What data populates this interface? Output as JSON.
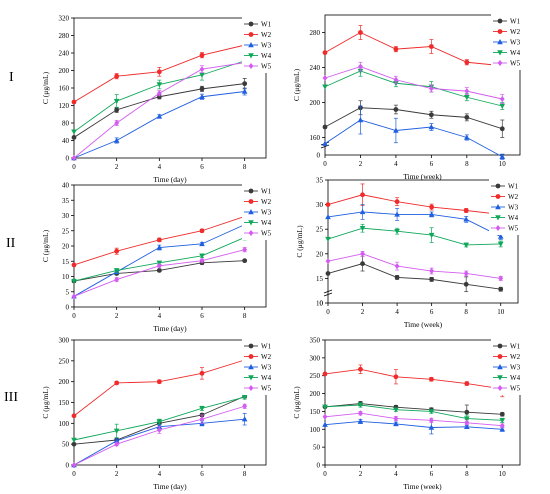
{
  "row_labels": [
    "I",
    "II",
    "III"
  ],
  "legend_labels": [
    "W1",
    "W2",
    "W3",
    "W4",
    "W5"
  ],
  "series_colors": [
    "#3a3a3a",
    "#ef2b2b",
    "#1f5fe0",
    "#0fa85a",
    "#d35cf0"
  ],
  "series_markers": [
    "circle",
    "circle",
    "triangle-up",
    "triangle-down",
    "diamond"
  ],
  "chart_data": [
    {
      "type": "line",
      "title": "",
      "row": "I",
      "xlabel": "Time (day)",
      "ylabel": "C (μg/mL)",
      "x": [
        0,
        2,
        4,
        6,
        8
      ],
      "xlim": [
        0,
        9
      ],
      "ylim": [
        0,
        320
      ],
      "xticks": [
        0,
        2,
        4,
        6,
        8
      ],
      "yticks": [
        0,
        40,
        80,
        120,
        160,
        200,
        240,
        280,
        320
      ],
      "legend": "top-right",
      "series": [
        {
          "name": "W1",
          "values": [
            47,
            110,
            140,
            158,
            170
          ],
          "err": [
            0,
            6,
            5,
            6,
            12
          ]
        },
        {
          "name": "W2",
          "values": [
            128,
            187,
            197,
            235,
            258
          ],
          "err": [
            0,
            6,
            10,
            6,
            10
          ]
        },
        {
          "name": "W3",
          "values": [
            0,
            40,
            95,
            140,
            152
          ],
          "err": [
            0,
            6,
            4,
            6,
            8
          ]
        },
        {
          "name": "W4",
          "values": [
            60,
            130,
            168,
            190,
            222
          ],
          "err": [
            0,
            15,
            10,
            12,
            14
          ]
        },
        {
          "name": "W5",
          "values": [
            0,
            80,
            148,
            203,
            218
          ],
          "err": [
            0,
            6,
            6,
            8,
            14
          ]
        }
      ]
    },
    {
      "type": "line",
      "title": "",
      "row": "I",
      "xlabel": "Time (week)",
      "ylabel": "C (μg/mL)",
      "x": [
        0,
        2,
        4,
        6,
        8,
        10
      ],
      "xlim": [
        0,
        11
      ],
      "ylim": [
        140,
        300
      ],
      "ybreak_label": "0",
      "xticks": [
        0,
        2,
        4,
        6,
        8,
        10
      ],
      "yticks": [
        160,
        200,
        240,
        280
      ],
      "legend": "top-right",
      "series": [
        {
          "name": "W1",
          "values": [
            172,
            194,
            192,
            186,
            183,
            170
          ],
          "err": [
            0,
            8,
            5,
            4,
            4,
            10
          ]
        },
        {
          "name": "W2",
          "values": [
            257,
            280,
            261,
            264,
            246,
            242
          ],
          "err": [
            0,
            8,
            3,
            8,
            3,
            3
          ]
        },
        {
          "name": "W3",
          "values": [
            153,
            180,
            168,
            172,
            160,
            138
          ],
          "err": [
            0,
            16,
            14,
            4,
            3,
            3
          ]
        },
        {
          "name": "W4",
          "values": [
            218,
            236,
            222,
            218,
            206,
            196
          ],
          "err": [
            0,
            6,
            4,
            6,
            4,
            4
          ]
        },
        {
          "name": "W5",
          "values": [
            228,
            241,
            226,
            216,
            213,
            204
          ],
          "err": [
            0,
            5,
            4,
            4,
            4,
            5
          ]
        }
      ]
    },
    {
      "type": "line",
      "title": "",
      "row": "II",
      "xlabel": "Time (day)",
      "ylabel": "C (μg/mL)",
      "x": [
        0,
        2,
        4,
        6,
        8
      ],
      "xlim": [
        0,
        9
      ],
      "ylim": [
        0,
        40
      ],
      "xticks": [
        0,
        2,
        4,
        6,
        8
      ],
      "yticks": [
        0,
        5,
        10,
        15,
        20,
        25,
        30,
        35,
        40
      ],
      "legend": "top-right",
      "series": [
        {
          "name": "W1",
          "values": [
            8.5,
            11,
            12,
            14.5,
            15.2
          ],
          "err": [
            0,
            0.5,
            0.4,
            0.5,
            0.4
          ]
        },
        {
          "name": "W2",
          "values": [
            13.8,
            18.3,
            22,
            25,
            29.7
          ],
          "err": [
            0,
            1,
            0.6,
            0.5,
            0.5
          ]
        },
        {
          "name": "W3",
          "values": [
            3.5,
            11.5,
            19.5,
            20.7,
            27
          ],
          "err": [
            0,
            0.5,
            0.8,
            0.5,
            1.5
          ]
        },
        {
          "name": "W4",
          "values": [
            8.5,
            12,
            14.5,
            16.8,
            22.8
          ],
          "err": [
            0,
            0.6,
            0.5,
            0.6,
            0.8
          ]
        },
        {
          "name": "W5",
          "values": [
            3.5,
            9,
            13.5,
            15.2,
            18.8
          ],
          "err": [
            0,
            0.6,
            0.4,
            0.5,
            0.7
          ]
        }
      ]
    },
    {
      "type": "line",
      "title": "",
      "row": "II",
      "xlabel": "Time (week)",
      "ylabel": "C (μg/mL)",
      "x": [
        0,
        2,
        4,
        6,
        8,
        10
      ],
      "xlim": [
        0,
        11
      ],
      "ylim": [
        10,
        35
      ],
      "ybreak_label": "0",
      "xticks": [
        0,
        2,
        4,
        6,
        8,
        10
      ],
      "yticks": [
        10,
        15,
        20,
        25,
        30,
        35
      ],
      "legend": "top-right",
      "series": [
        {
          "name": "W1",
          "values": [
            16,
            18,
            15.2,
            14.8,
            13.8,
            12.8
          ],
          "err": [
            0,
            1.5,
            0.4,
            0.4,
            1.5,
            0.4
          ]
        },
        {
          "name": "W2",
          "values": [
            30,
            32,
            30.6,
            29.5,
            28.8,
            28
          ],
          "err": [
            0,
            2.2,
            0.8,
            0.6,
            0.4,
            0.4
          ]
        },
        {
          "name": "W3",
          "values": [
            27.5,
            28.5,
            28,
            28,
            27,
            23.5
          ],
          "err": [
            0,
            1.5,
            1.2,
            0.5,
            0.6,
            0.6
          ]
        },
        {
          "name": "W4",
          "values": [
            23,
            25.2,
            24.6,
            23.8,
            21.8,
            22
          ],
          "err": [
            0,
            0.8,
            0.6,
            1.5,
            0.4,
            0.6
          ]
        },
        {
          "name": "W5",
          "values": [
            18.5,
            20,
            17.5,
            16.5,
            16,
            15
          ],
          "err": [
            0,
            0.5,
            0.8,
            0.6,
            0.5,
            0.4
          ]
        }
      ]
    },
    {
      "type": "line",
      "title": "",
      "row": "III",
      "xlabel": "Time (day)",
      "ylabel": "C (μg/mL)",
      "x": [
        0,
        2,
        4,
        6,
        8
      ],
      "xlim": [
        0,
        9
      ],
      "ylim": [
        0,
        300
      ],
      "xticks": [
        0,
        2,
        4,
        6,
        8
      ],
      "yticks": [
        0,
        50,
        100,
        150,
        200,
        250,
        300
      ],
      "legend": "top-right",
      "series": [
        {
          "name": "W1",
          "values": [
            50,
            60,
            100,
            120,
            165
          ],
          "err": [
            0,
            4,
            4,
            4,
            4
          ]
        },
        {
          "name": "W2",
          "values": [
            118,
            197,
            200,
            220,
            252
          ],
          "err": [
            0,
            3,
            4,
            14,
            4
          ]
        },
        {
          "name": "W3",
          "values": [
            0,
            58,
            92,
            100,
            110
          ],
          "err": [
            0,
            5,
            5,
            6,
            14
          ]
        },
        {
          "name": "W4",
          "values": [
            60,
            82,
            104,
            136,
            163
          ],
          "err": [
            0,
            16,
            6,
            5,
            5
          ]
        },
        {
          "name": "W5",
          "values": [
            0,
            50,
            84,
            110,
            141
          ],
          "err": [
            0,
            4,
            8,
            10,
            5
          ]
        }
      ]
    },
    {
      "type": "line",
      "title": "",
      "row": "III",
      "xlabel": "Time (week)",
      "ylabel": "C (μg/mL)",
      "x": [
        0,
        2,
        4,
        6,
        8,
        10
      ],
      "xlim": [
        0,
        11
      ],
      "ylim": [
        0,
        350
      ],
      "xticks": [
        0,
        2,
        4,
        6,
        8,
        10
      ],
      "yticks": [
        0,
        50,
        100,
        150,
        200,
        250,
        300,
        350
      ],
      "legend": "top-right",
      "series": [
        {
          "name": "W1",
          "values": [
            163,
            172,
            162,
            155,
            148,
            142
          ],
          "err": [
            0,
            6,
            5,
            5,
            20,
            5
          ]
        },
        {
          "name": "W2",
          "values": [
            255,
            268,
            247,
            240,
            228,
            213
          ],
          "err": [
            0,
            12,
            20,
            5,
            5,
            22
          ]
        },
        {
          "name": "W3",
          "values": [
            113,
            122,
            115,
            105,
            107,
            100
          ],
          "err": [
            0,
            6,
            5,
            18,
            4,
            6
          ]
        },
        {
          "name": "W4",
          "values": [
            163,
            168,
            155,
            150,
            130,
            125
          ],
          "err": [
            0,
            6,
            5,
            5,
            10,
            6
          ]
        },
        {
          "name": "W5",
          "values": [
            135,
            145,
            130,
            125,
            118,
            110
          ],
          "err": [
            0,
            5,
            6,
            6,
            5,
            5
          ]
        }
      ]
    }
  ]
}
